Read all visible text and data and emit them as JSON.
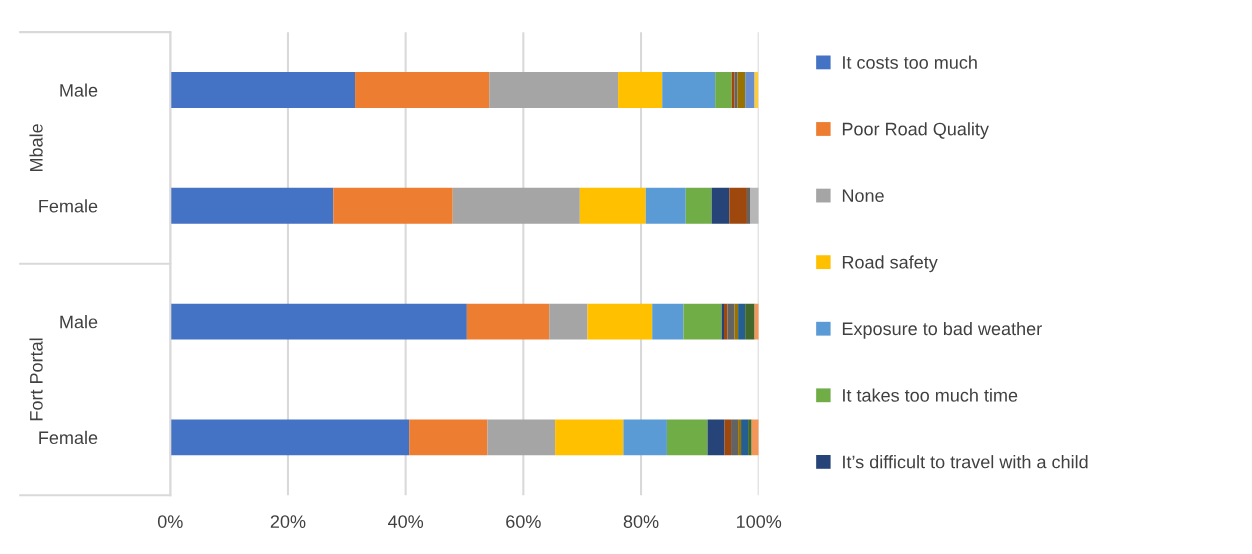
{
  "chart_data": {
    "type": "bar",
    "orientation": "horizontal",
    "stacked": true,
    "categories": [
      "Male",
      "Female",
      "Male",
      "Female"
    ],
    "annotations": [
      "Mbale",
      "Fort Portal"
    ],
    "series": [
      {
        "name": "It costs too much",
        "color": "#4472c4",
        "values": [
          31.4,
          27.7,
          50.4,
          40.6
        ]
      },
      {
        "name": "Poor Road Quality",
        "color": "#ed7d31",
        "values": [
          22.8,
          20.3,
          14.0,
          13.3
        ]
      },
      {
        "name": "None",
        "color": "#a5a5a5",
        "values": [
          21.9,
          21.6,
          6.5,
          11.5
        ]
      },
      {
        "name": "Road safety",
        "color": "#ffc000",
        "values": [
          7.5,
          11.2,
          11.0,
          11.6
        ]
      },
      {
        "name": "Exposure to bad weather",
        "color": "#5b9bd5",
        "values": [
          9.0,
          6.8,
          5.3,
          7.4
        ]
      },
      {
        "name": "It takes too much time",
        "color": "#70ad47",
        "values": [
          2.8,
          4.4,
          6.5,
          6.9
        ]
      },
      {
        "name": "It’s difficult to travel with a child",
        "color": "#264478",
        "values": [
          0,
          3.0,
          0.4,
          2.9
        ]
      },
      {
        "color": "#9e480e",
        "values": [
          0.5,
          3.0,
          0.6,
          1.1
        ]
      },
      {
        "color": "#636363",
        "values": [
          0.5,
          0.6,
          1.2,
          1.2
        ]
      },
      {
        "color": "#997300",
        "values": [
          1.3,
          0,
          0.6,
          0.5
        ]
      },
      {
        "color": "#255e91",
        "values": [
          0,
          0,
          1.2,
          1.2
        ]
      },
      {
        "color": "#43682b",
        "values": [
          0,
          0,
          1.6,
          0.6
        ]
      },
      {
        "color": "#698ed0",
        "values": [
          1.6,
          0,
          0,
          0
        ]
      },
      {
        "color": "#f1975a",
        "values": [
          0,
          0,
          0.7,
          1.2
        ]
      },
      {
        "color": "#b7b7b7",
        "values": [
          0,
          1.4,
          0,
          0
        ]
      },
      {
        "color": "#ffcd33",
        "values": [
          0.6,
          0,
          0,
          0
        ]
      }
    ],
    "xlim": [
      0,
      100
    ],
    "xticks": [
      {
        "value": 0,
        "label": "0%"
      },
      {
        "value": 20,
        "label": "20%"
      },
      {
        "value": 40,
        "label": "40%"
      },
      {
        "value": 60,
        "label": "60%"
      },
      {
        "value": 80,
        "label": "80%"
      },
      {
        "value": 100,
        "label": "100%"
      }
    ],
    "grid": "x",
    "legend": "right"
  }
}
